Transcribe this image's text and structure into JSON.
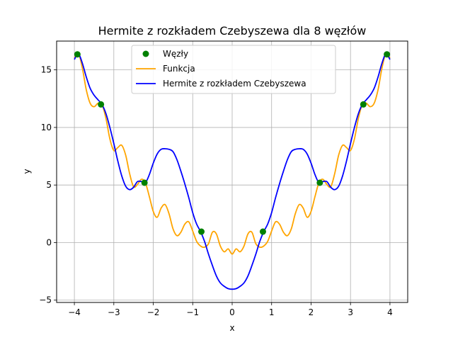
{
  "chart_data": {
    "type": "line",
    "title": "Hermite z rozkładem Czebyszewa dla 8 węzłów",
    "xlabel": "x",
    "ylabel": "y",
    "xlim": [
      -4.45,
      4.45
    ],
    "ylim": [
      -5.2,
      17.5
    ],
    "xticks": [
      -4,
      -3,
      -2,
      -1,
      0,
      1,
      2,
      3,
      4
    ],
    "xtick_labels": [
      "−4",
      "−3",
      "−2",
      "−1",
      "0",
      "1",
      "2",
      "3",
      "4"
    ],
    "yticks": [
      -5,
      0,
      5,
      10,
      15
    ],
    "ytick_labels": [
      "−5",
      "0",
      "5",
      "10",
      "15"
    ],
    "grid": true,
    "legend_position": "top-center",
    "series": [
      {
        "name": "Węzły",
        "kind": "scatter",
        "color": "#008000",
        "x": [
          -3.923,
          -3.326,
          -2.222,
          -0.78,
          0.78,
          2.222,
          3.326,
          3.923
        ],
        "y": [
          16.35,
          12.0,
          5.2,
          0.95,
          0.95,
          5.2,
          12.0,
          16.35
        ]
      },
      {
        "name": "Funkcja",
        "kind": "line",
        "color": "#ffa500",
        "x": [
          -4.0,
          -3.9,
          -3.8,
          -3.7,
          -3.6,
          -3.5,
          -3.4,
          -3.3,
          -3.2,
          -3.1,
          -3.0,
          -2.9,
          -2.8,
          -2.7,
          -2.6,
          -2.5,
          -2.4,
          -2.3,
          -2.2,
          -2.1,
          -2.0,
          -1.9,
          -1.8,
          -1.7,
          -1.6,
          -1.5,
          -1.4,
          -1.3,
          -1.2,
          -1.1,
          -1.0,
          -0.9,
          -0.8,
          -0.7,
          -0.6,
          -0.5,
          -0.4,
          -0.3,
          -0.2,
          -0.1,
          0.0,
          0.1,
          0.2,
          0.3,
          0.4,
          0.5,
          0.6,
          0.7,
          0.8,
          0.9,
          1.0,
          1.1,
          1.2,
          1.3,
          1.4,
          1.5,
          1.6,
          1.7,
          1.8,
          1.9,
          2.0,
          2.1,
          2.2,
          2.3,
          2.4,
          2.5,
          2.6,
          2.7,
          2.8,
          2.9,
          3.0,
          3.1,
          3.2,
          3.3,
          3.4,
          3.5,
          3.6,
          3.7,
          3.8,
          3.9,
          4.0
        ],
        "y": [
          16.0,
          16.45,
          15.2,
          13.3,
          12.1,
          11.8,
          12.1,
          12.0,
          10.8,
          9.0,
          8.0,
          8.25,
          8.45,
          7.6,
          6.0,
          4.85,
          5.05,
          5.5,
          5.2,
          4.0,
          2.7,
          2.2,
          3.0,
          3.3,
          2.5,
          1.2,
          0.6,
          0.9,
          1.6,
          1.8,
          1.0,
          0.1,
          -0.3,
          -0.4,
          -0.1,
          0.9,
          0.75,
          -0.3,
          -0.8,
          -0.55,
          -1.0,
          -0.55,
          -0.8,
          -0.3,
          0.75,
          0.9,
          -0.1,
          -0.4,
          -0.3,
          0.1,
          1.0,
          1.8,
          1.6,
          0.9,
          0.6,
          1.2,
          2.5,
          3.3,
          3.0,
          2.2,
          2.7,
          4.0,
          5.2,
          5.5,
          5.05,
          4.85,
          6.0,
          7.6,
          8.45,
          8.25,
          8.0,
          9.0,
          10.8,
          12.0,
          12.1,
          11.8,
          12.1,
          13.3,
          15.2,
          16.45,
          16.0
        ]
      },
      {
        "name": "Hermite z rozkładem Czebyszewa",
        "kind": "line",
        "color": "#0000ff",
        "x": [
          -4.0,
          -3.9,
          -3.8,
          -3.7,
          -3.6,
          -3.5,
          -3.4,
          -3.3,
          -3.2,
          -3.1,
          -3.0,
          -2.9,
          -2.8,
          -2.7,
          -2.6,
          -2.5,
          -2.4,
          -2.3,
          -2.2,
          -2.1,
          -2.0,
          -1.9,
          -1.8,
          -1.7,
          -1.6,
          -1.5,
          -1.4,
          -1.3,
          -1.2,
          -1.1,
          -1.0,
          -0.9,
          -0.8,
          -0.7,
          -0.6,
          -0.5,
          -0.4,
          -0.3,
          -0.2,
          -0.1,
          0.0,
          0.1,
          0.2,
          0.3,
          0.4,
          0.5,
          0.6,
          0.7,
          0.8,
          0.9,
          1.0,
          1.1,
          1.2,
          1.3,
          1.4,
          1.5,
          1.6,
          1.7,
          1.8,
          1.9,
          2.0,
          2.1,
          2.2,
          2.3,
          2.4,
          2.5,
          2.6,
          2.7,
          2.8,
          2.9,
          3.0,
          3.1,
          3.2,
          3.3,
          3.4,
          3.5,
          3.6,
          3.7,
          3.8,
          3.9,
          4.0
        ],
        "y": [
          15.9,
          16.4,
          15.6,
          14.4,
          13.4,
          12.8,
          12.4,
          12.0,
          11.2,
          10.0,
          8.6,
          7.1,
          5.8,
          4.9,
          4.6,
          4.8,
          5.3,
          5.3,
          5.2,
          5.9,
          6.9,
          7.7,
          8.1,
          8.15,
          8.1,
          7.9,
          7.2,
          6.2,
          5.1,
          3.9,
          2.6,
          1.6,
          0.95,
          0.1,
          -1.0,
          -2.0,
          -2.9,
          -3.5,
          -3.8,
          -4.0,
          -4.05,
          -4.0,
          -3.8,
          -3.5,
          -2.9,
          -2.0,
          -1.0,
          0.1,
          0.95,
          1.6,
          2.6,
          3.9,
          5.1,
          6.2,
          7.2,
          7.9,
          8.1,
          8.15,
          8.1,
          7.7,
          6.9,
          5.9,
          5.2,
          5.3,
          5.3,
          4.8,
          4.6,
          4.9,
          5.8,
          7.1,
          8.6,
          10.0,
          11.2,
          12.0,
          12.4,
          12.8,
          13.4,
          14.4,
          15.6,
          16.4,
          15.9
        ]
      }
    ]
  }
}
